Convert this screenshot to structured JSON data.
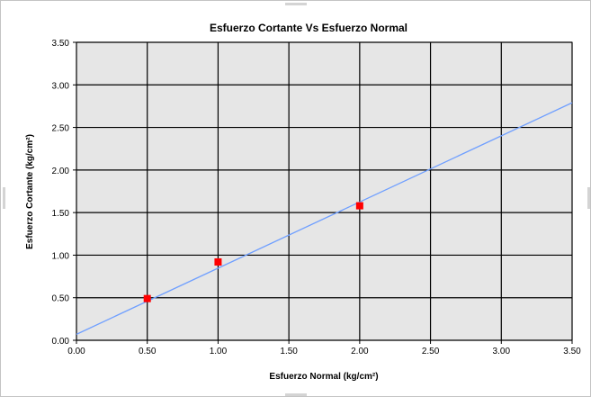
{
  "chart_data": {
    "type": "scatter",
    "title": "Esfuerzo Cortante Vs Esfuerzo Normal",
    "xlabel": "Esfuerzo Normal (kg/cm²)",
    "ylabel": "Esfuerzo Cortante (kg/cm²)",
    "xlim": [
      0,
      3.5
    ],
    "ylim": [
      0,
      3.5
    ],
    "xticks": [
      "0.00",
      "0.50",
      "1.00",
      "1.50",
      "2.00",
      "2.50",
      "3.00",
      "3.50"
    ],
    "yticks": [
      "0.00",
      "0.50",
      "1.00",
      "1.50",
      "2.00",
      "2.50",
      "3.00",
      "3.50"
    ],
    "grid": true,
    "plot_background": "#e6e6e6",
    "series": [
      {
        "kind": "points",
        "marker": "square",
        "color": "#ff0000",
        "x": [
          0.5,
          1.0,
          2.0
        ],
        "y": [
          0.49,
          0.92,
          1.58
        ]
      },
      {
        "kind": "line",
        "color": "#6f9fff",
        "x": [
          0.0,
          3.5
        ],
        "y": [
          0.07,
          2.79
        ]
      }
    ]
  }
}
